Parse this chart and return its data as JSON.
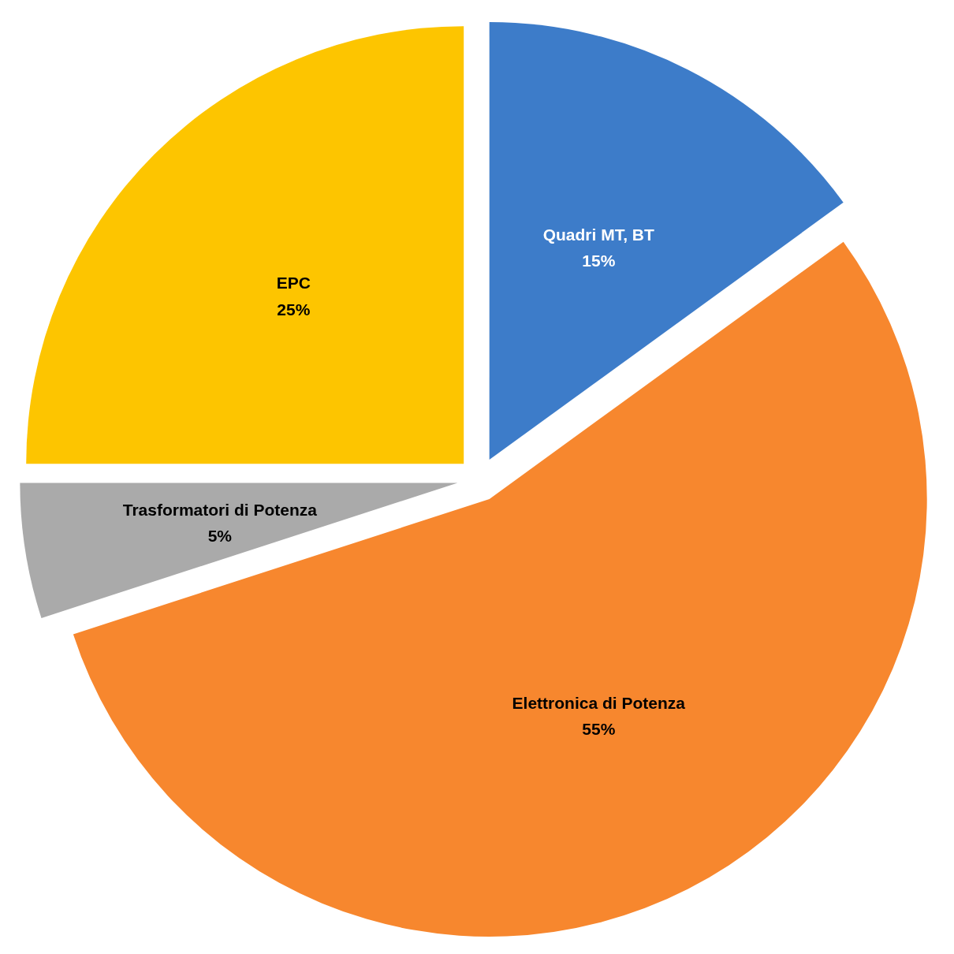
{
  "chart_data": {
    "type": "pie",
    "categories": [
      "Quadri MT, BT",
      "Elettronica di Potenza",
      "Trasformatori di Potenza",
      "EPC"
    ],
    "values": [
      15,
      55,
      5,
      25
    ],
    "colors": [
      "#3d7cc9",
      "#f7872e",
      "#aaaaaa",
      "#fdc500"
    ],
    "value_labels": [
      "15%",
      "55%",
      "5%",
      "25%"
    ],
    "legend": false
  }
}
